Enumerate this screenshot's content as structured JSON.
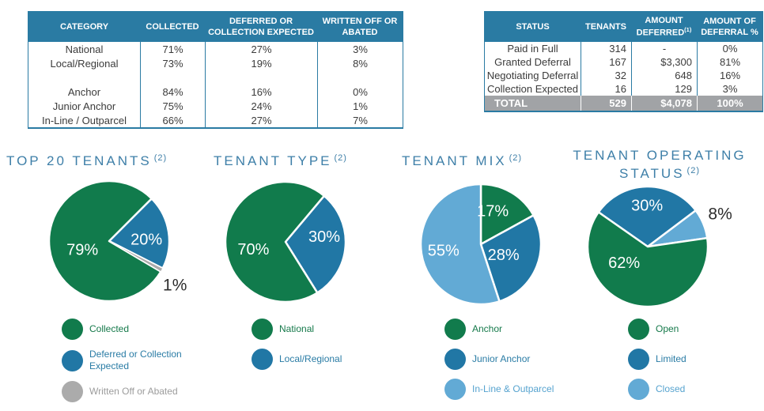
{
  "colors": {
    "green": "#117B4C",
    "blue": "#2177A5",
    "light_blue": "#62AAD5",
    "gray": "#ABABAB",
    "table_header_bg": "#2A7BA3",
    "table_border": "#2A7BA3",
    "total_row_bg": "#A1A3A6",
    "title_text": "#3E7FA8",
    "body_text": "#3B3B3B",
    "outside_label_text": "#2D2D2D"
  },
  "rent_collection_table": {
    "headers": [
      {
        "text": "CATEGORY"
      },
      {
        "text": "COLLECTED"
      },
      {
        "text": "DEFERRED OR COLLECTION EXPECTED"
      },
      {
        "text": "WRITTEN OFF OR ABATED"
      }
    ],
    "rows": [
      [
        "National",
        "71%",
        "27%",
        "3%"
      ],
      [
        "Local/Regional",
        "73%",
        "19%",
        "8%"
      ],
      [
        "",
        "",
        "",
        ""
      ],
      [
        "Anchor",
        "84%",
        "16%",
        "0%"
      ],
      [
        "Junior Anchor",
        "75%",
        "24%",
        "1%"
      ],
      [
        "In-Line / Outparcel",
        "66%",
        "27%",
        "7%"
      ]
    ]
  },
  "deferral_table": {
    "headers": [
      {
        "text": "STATUS"
      },
      {
        "text": "TENANTS"
      },
      {
        "text": "AMOUNT DEFERRED",
        "sup": "(1)"
      },
      {
        "text": "AMOUNT OF DEFERRAL %"
      }
    ],
    "rows": [
      [
        "Paid in Full",
        "314",
        "-",
        "0%"
      ],
      [
        "Granted Deferral",
        "167",
        "$3,300",
        "81%"
      ],
      [
        "Negotiating Deferral",
        "32",
        "648",
        "16%"
      ],
      [
        "Collection Expected",
        "16",
        "129",
        "3%"
      ]
    ],
    "total_row": [
      "TOTAL",
      "529",
      "$4,078",
      "100%"
    ]
  },
  "chart_data": [
    {
      "type": "pie",
      "title": "TOP 20 TENANTS",
      "title_sup": "(2)",
      "start_angle": 45,
      "slices": [
        {
          "label": "Deferred or Collection Expected",
          "value": 20,
          "color": "blue",
          "pct_label": "20%",
          "label_angle": 88,
          "label_r": 0.62,
          "label_color": "#FFFFFF"
        },
        {
          "label": "Written Off or Abated",
          "value": 1,
          "color": "gray",
          "pct_label": "1%",
          "label_angle": 124,
          "label_r": 1.32,
          "label_color": "#2D2D2D"
        },
        {
          "label": "Collected",
          "value": 79,
          "color": "green",
          "pct_label": "79%",
          "label_angle": 251,
          "label_r": 0.47,
          "label_color": "#FFFFFF"
        }
      ],
      "legend": [
        {
          "label": "Collected",
          "color": "green",
          "text_color": "#15794A",
          "wrap": false
        },
        {
          "label": "Deferred or Collection Expected",
          "color": "blue",
          "text_color": "#2A7CA5",
          "wrap": true
        },
        {
          "label": "Written Off or Abated",
          "color": "gray",
          "text_color": "#9C9C9C",
          "wrap": false
        }
      ]
    },
    {
      "type": "pie",
      "title": "TENANT TYPE",
      "title_sup": "(2)",
      "start_angle": 40,
      "slices": [
        {
          "label": "Local/Regional",
          "value": 30,
          "color": "blue",
          "pct_label": "30%",
          "label_angle": 83,
          "label_r": 0.65,
          "label_color": "#FFFFFF"
        },
        {
          "label": "National",
          "value": 70,
          "color": "green",
          "pct_label": "70%",
          "label_angle": 256,
          "label_r": 0.55,
          "label_color": "#FFFFFF"
        }
      ],
      "legend": [
        {
          "label": "National",
          "color": "green",
          "text_color": "#15794A",
          "wrap": false
        },
        {
          "label": "Local/Regional",
          "color": "blue",
          "text_color": "#2A7CA5",
          "wrap": false
        }
      ]
    },
    {
      "type": "pie",
      "title": "TENANT MIX",
      "title_sup": "(2)",
      "start_angle": 0,
      "slices": [
        {
          "label": "Anchor",
          "value": 17,
          "color": "green",
          "pct_label": "17%",
          "label_angle": 20,
          "label_r": 0.58,
          "label_color": "#FFFFFF"
        },
        {
          "label": "Junior Anchor",
          "value": 28,
          "color": "blue",
          "pct_label": "28%",
          "label_angle": 116,
          "label_r": 0.42,
          "label_color": "#FFFFFF"
        },
        {
          "label": "In-Line & Outparcel",
          "value": 55,
          "color": "light_blue",
          "pct_label": "55%",
          "label_angle": 260,
          "label_r": 0.63,
          "label_color": "#FFFFFF"
        }
      ],
      "legend": [
        {
          "label": "Anchor",
          "color": "green",
          "text_color": "#15794A",
          "wrap": false
        },
        {
          "label": "Junior Anchor",
          "color": "blue",
          "text_color": "#2A7CA5",
          "wrap": false
        },
        {
          "label": "In-Line & Outparcel",
          "color": "light_blue",
          "text_color": "#56A3CF",
          "wrap": false
        }
      ]
    },
    {
      "type": "pie",
      "title": "TENANT OPERATING STATUS",
      "title_sup": "(2)",
      "start_angle": 305,
      "slices": [
        {
          "label": "Limited",
          "value": 30,
          "color": "blue",
          "pct_label": "30%",
          "label_angle": 359,
          "label_r": 0.68,
          "label_color": "#FFFFFF"
        },
        {
          "label": "Closed",
          "value": 8,
          "color": "light_blue",
          "pct_label": "8%",
          "label_angle": 66,
          "label_r": 1.32,
          "label_color": "#2D2D2D"
        },
        {
          "label": "Open",
          "value": 62,
          "color": "green",
          "pct_label": "62%",
          "label_angle": 235,
          "label_r": 0.48,
          "label_color": "#FFFFFF"
        }
      ],
      "legend": [
        {
          "label": "Open",
          "color": "green",
          "text_color": "#15794A",
          "wrap": false
        },
        {
          "label": "Limited",
          "color": "blue",
          "text_color": "#2A7CA5",
          "wrap": false
        },
        {
          "label": "Closed",
          "color": "light_blue",
          "text_color": "#56A3CF",
          "wrap": false
        }
      ]
    }
  ]
}
